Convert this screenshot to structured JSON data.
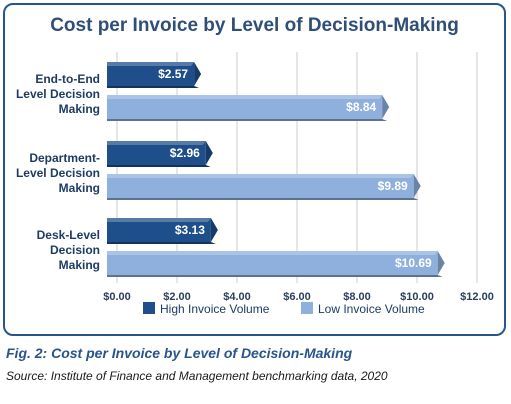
{
  "chart_data": {
    "type": "bar",
    "orientation": "horizontal",
    "title": "Cost per Invoice by Level of Decision-Making",
    "categories": [
      [
        "End-to-End",
        "Level Decision",
        "Making"
      ],
      [
        "Department-",
        "Level Decision",
        "Making"
      ],
      [
        "Desk-Level",
        "Decision",
        "Making"
      ]
    ],
    "series": [
      {
        "name": "High Invoice Volume",
        "values": [
          2.57,
          2.96,
          3.13
        ],
        "labels": [
          "$2.57",
          "$2.96",
          "$3.13"
        ],
        "color": "#1f4f8a"
      },
      {
        "name": "Low Invoice Volume",
        "values": [
          8.84,
          9.89,
          10.69
        ],
        "labels": [
          "$8.84",
          "$9.89",
          "$10.69"
        ],
        "color": "#8fb0dd"
      }
    ],
    "xlim": [
      0,
      12
    ],
    "ticks": [
      "$0.00",
      "$2.00",
      "$4.00",
      "$6.00",
      "$8.00",
      "$10.00",
      "$12.00"
    ],
    "grid": true,
    "legend": "bottom"
  },
  "caption": "Fig. 2: Cost per Invoice by Level of Decision-Making",
  "source": "Source: Institute of Finance and Management benchmarking data, 2020"
}
